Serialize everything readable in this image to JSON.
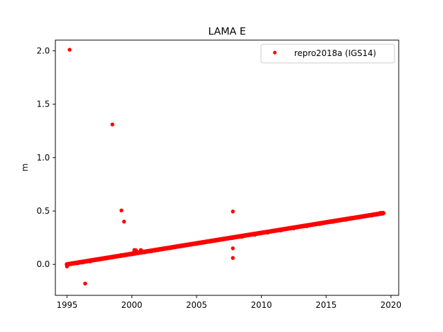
{
  "chart_data": {
    "type": "scatter",
    "title": "LAMA E",
    "xlabel": "",
    "ylabel": "m",
    "xlim": [
      1994.1,
      2020.6
    ],
    "ylim": [
      -0.29,
      2.1
    ],
    "xticks": [
      1995,
      2000,
      2005,
      2010,
      2015,
      2020
    ],
    "xtick_labels": [
      "1995",
      "2000",
      "2005",
      "2010",
      "2015",
      "2020"
    ],
    "yticks": [
      0.0,
      0.5,
      1.0,
      1.5,
      2.0
    ],
    "ytick_labels": [
      "0.0",
      "0.5",
      "1.0",
      "1.5",
      "2.0"
    ],
    "grid": false,
    "legend_position": "top-right",
    "series": [
      {
        "name": "repro2018a (IGS14)",
        "color": "#ff0000",
        "marker": "circle",
        "trend": {
          "x_start": 1995.0,
          "x_end": 2019.4,
          "y_start": 0.0,
          "y_end": 0.48
        },
        "x": [
          1995.0,
          1995.3,
          1995.8,
          1996.2,
          1996.8,
          1997.4,
          1998.0,
          1998.6,
          1999.2,
          1999.8,
          2000.1,
          2000.3,
          2000.6,
          2001.0,
          2001.5,
          2002.0,
          2003.0,
          2004.0,
          2005.0,
          2006.0,
          2007.0,
          2007.8,
          2008.5,
          2009.5,
          2010.5,
          2011.5,
          2012.5,
          2013.5,
          2014.5,
          2015.5,
          2016.5,
          2017.5,
          2018.5,
          2019.2,
          2019.4
        ],
        "y": [
          0.0,
          0.005,
          0.012,
          0.02,
          0.03,
          0.045,
          0.06,
          0.072,
          0.085,
          0.095,
          0.105,
          0.13,
          0.115,
          0.115,
          0.125,
          0.135,
          0.155,
          0.175,
          0.195,
          0.215,
          0.235,
          0.25,
          0.26,
          0.28,
          0.3,
          0.32,
          0.34,
          0.36,
          0.38,
          0.4,
          0.42,
          0.44,
          0.46,
          0.48,
          0.48
        ],
        "outliers": {
          "x": [
            1995.0,
            1995.2,
            1996.4,
            1998.5,
            1999.2,
            1999.4,
            2000.2,
            2000.7,
            2007.8,
            2007.8,
            2007.8
          ],
          "y": [
            -0.02,
            2.01,
            -0.18,
            1.31,
            0.505,
            0.4,
            0.135,
            0.135,
            0.495,
            0.15,
            0.06
          ]
        }
      }
    ]
  }
}
